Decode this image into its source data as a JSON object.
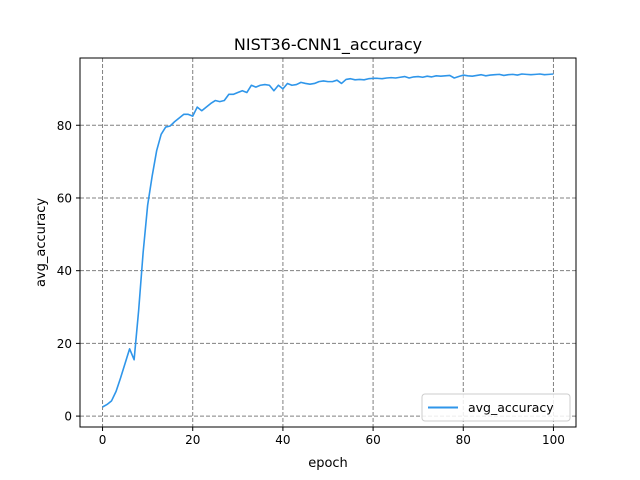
{
  "chart_data": {
    "type": "line",
    "title": "NIST36-CNN1_accuracy",
    "xlabel": "epoch",
    "ylabel": "avg_accuracy",
    "xlim": [
      -5,
      105
    ],
    "ylim": [
      -3,
      98.5
    ],
    "xticks": [
      0,
      20,
      40,
      60,
      80,
      100
    ],
    "yticks": [
      0,
      20,
      40,
      60,
      80
    ],
    "grid": true,
    "grid_style": "dashed",
    "legend_position": "lower-right",
    "colors": {
      "series": "#2f96ea",
      "grid": "#808080",
      "frame": "#000000"
    },
    "series": [
      {
        "name": "avg_accuracy",
        "x": [
          0,
          1,
          2,
          3,
          4,
          5,
          6,
          7,
          8,
          9,
          10,
          11,
          12,
          13,
          14,
          15,
          16,
          17,
          18,
          19,
          20,
          21,
          22,
          23,
          24,
          25,
          26,
          27,
          28,
          29,
          30,
          31,
          32,
          33,
          34,
          35,
          36,
          37,
          38,
          39,
          40,
          41,
          42,
          43,
          44,
          45,
          46,
          47,
          48,
          49,
          50,
          51,
          52,
          53,
          54,
          55,
          56,
          57,
          58,
          59,
          60,
          61,
          62,
          63,
          64,
          65,
          66,
          67,
          68,
          69,
          70,
          71,
          72,
          73,
          74,
          75,
          76,
          77,
          78,
          79,
          80,
          81,
          82,
          83,
          84,
          85,
          86,
          87,
          88,
          89,
          90,
          91,
          92,
          93,
          94,
          95,
          96,
          97,
          98,
          99,
          100
        ],
        "y": [
          2.5,
          3.2,
          4.2,
          6.8,
          10.5,
          14.5,
          18.5,
          15.5,
          29.0,
          45.0,
          58.0,
          66.0,
          73.0,
          77.5,
          79.5,
          79.8,
          81.0,
          82.0,
          83.0,
          83.0,
          82.5,
          85.0,
          84.0,
          85.0,
          86.0,
          86.8,
          86.5,
          86.8,
          88.5,
          88.5,
          89.0,
          89.5,
          89.0,
          91.0,
          90.5,
          91.0,
          91.2,
          91.0,
          89.5,
          91.0,
          90.0,
          91.5,
          91.0,
          91.2,
          91.8,
          91.5,
          91.3,
          91.5,
          92.0,
          92.2,
          92.0,
          92.0,
          92.4,
          91.5,
          92.6,
          92.8,
          92.5,
          92.6,
          92.5,
          92.8,
          92.9,
          92.9,
          92.8,
          93.0,
          93.1,
          93.0,
          93.2,
          93.4,
          93.0,
          93.3,
          93.4,
          93.2,
          93.5,
          93.3,
          93.6,
          93.5,
          93.6,
          93.7,
          93.0,
          93.4,
          93.8,
          93.6,
          93.5,
          93.7,
          93.9,
          93.6,
          93.8,
          93.9,
          94.0,
          93.7,
          93.9,
          94.0,
          93.8,
          94.1,
          94.0,
          93.9,
          94.0,
          94.1,
          93.9,
          94.0,
          94.1
        ]
      }
    ]
  }
}
